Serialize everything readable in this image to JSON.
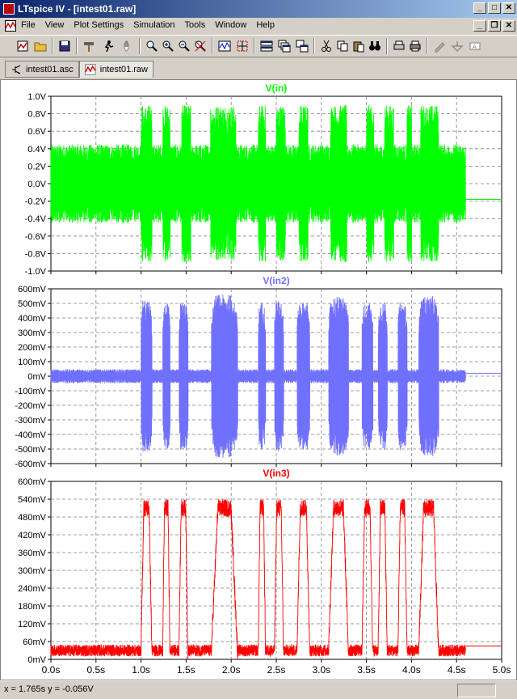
{
  "window": {
    "title": "LTspice IV - [intest01.raw]"
  },
  "menu": [
    "File",
    "View",
    "Plot Settings",
    "Simulation",
    "Tools",
    "Window",
    "Help"
  ],
  "tabs": [
    {
      "label": "intest01.asc",
      "active": false
    },
    {
      "label": "intest01.raw",
      "active": true
    }
  ],
  "toolbar": [
    "new-schematic",
    "open",
    "save",
    "control-panel",
    "run",
    "halt",
    "zoom-area",
    "zoom-in",
    "zoom-out",
    "zoom-cancel",
    "autorange",
    "mark-cursor",
    "tile-horizontal",
    "cascade",
    "tile-vertical",
    "cut",
    "copy",
    "paste",
    "find",
    "print-preview",
    "print",
    "wire",
    "ground",
    "label"
  ],
  "chart_data": [
    {
      "type": "line",
      "title": "V(in)",
      "color": "#00ff00",
      "ylabel": "",
      "xlabel": "",
      "yticks": [
        "1.0V",
        "0.8V",
        "0.6V",
        "0.4V",
        "0.2V",
        "0.0V",
        "-0.2V",
        "-0.4V",
        "-0.6V",
        "-0.8V",
        "-1.0V"
      ],
      "ylim": [
        -1.0,
        1.0
      ],
      "grid": true,
      "signal": "modulated noise carrier, amplitude ~0.4V baseline, bursts to ~0.9V",
      "bursts_s": [
        [
          1.0,
          1.12
        ],
        [
          1.24,
          1.32
        ],
        [
          1.45,
          1.55
        ],
        [
          1.77,
          2.05
        ],
        [
          2.3,
          2.38
        ],
        [
          2.5,
          2.6
        ],
        [
          2.75,
          2.85
        ],
        [
          3.1,
          3.28
        ],
        [
          3.5,
          3.58
        ],
        [
          3.7,
          3.8
        ],
        [
          3.95,
          4.0
        ],
        [
          4.1,
          4.3
        ]
      ],
      "end_value": -0.18
    },
    {
      "type": "line",
      "title": "V(in2)",
      "color": "#7070ff",
      "yticks": [
        "600mV",
        "500mV",
        "400mV",
        "300mV",
        "200mV",
        "100mV",
        "0mV",
        "-100mV",
        "-200mV",
        "-300mV",
        "-400mV",
        "-500mV",
        "-600mV"
      ],
      "ylim": [
        -600,
        600
      ],
      "grid": true,
      "baseline_amp": 40,
      "bursts_s": [
        [
          1.0,
          1.12,
          520
        ],
        [
          1.24,
          1.32,
          500
        ],
        [
          1.42,
          1.52,
          510
        ],
        [
          1.78,
          2.07,
          560
        ],
        [
          2.3,
          2.38,
          510
        ],
        [
          2.48,
          2.58,
          520
        ],
        [
          2.73,
          2.87,
          510
        ],
        [
          3.08,
          3.3,
          550
        ],
        [
          3.45,
          3.57,
          500
        ],
        [
          3.63,
          3.73,
          510
        ],
        [
          3.85,
          3.95,
          510
        ],
        [
          4.08,
          4.3,
          550
        ]
      ],
      "end_value": 20
    },
    {
      "type": "line",
      "title": "V(in3)",
      "color": "#ff0000",
      "yticks": [
        "600mV",
        "540mV",
        "480mV",
        "420mV",
        "360mV",
        "300mV",
        "240mV",
        "180mV",
        "120mV",
        "60mV",
        "0mV"
      ],
      "ylim": [
        0,
        600
      ],
      "grid": true,
      "high_level": 510,
      "low_level": 30,
      "bursts_s": [
        [
          1.0,
          1.12
        ],
        [
          1.24,
          1.32
        ],
        [
          1.42,
          1.52
        ],
        [
          1.78,
          2.07
        ],
        [
          2.3,
          2.38
        ],
        [
          2.48,
          2.58
        ],
        [
          2.73,
          2.87
        ],
        [
          3.08,
          3.3
        ],
        [
          3.45,
          3.57
        ],
        [
          3.63,
          3.73
        ],
        [
          3.85,
          3.95
        ],
        [
          4.08,
          4.3
        ]
      ],
      "end_value": 45
    }
  ],
  "xaxis": {
    "ticks": [
      "0.0s",
      "0.5s",
      "1.0s",
      "1.5s",
      "2.0s",
      "2.5s",
      "3.0s",
      "3.5s",
      "4.0s",
      "4.5s",
      "5.0s"
    ],
    "xlim": [
      0,
      5.0
    ],
    "data_end": 4.6
  },
  "status": {
    "cursor": "x = 1.765s    y = -0.056V"
  }
}
